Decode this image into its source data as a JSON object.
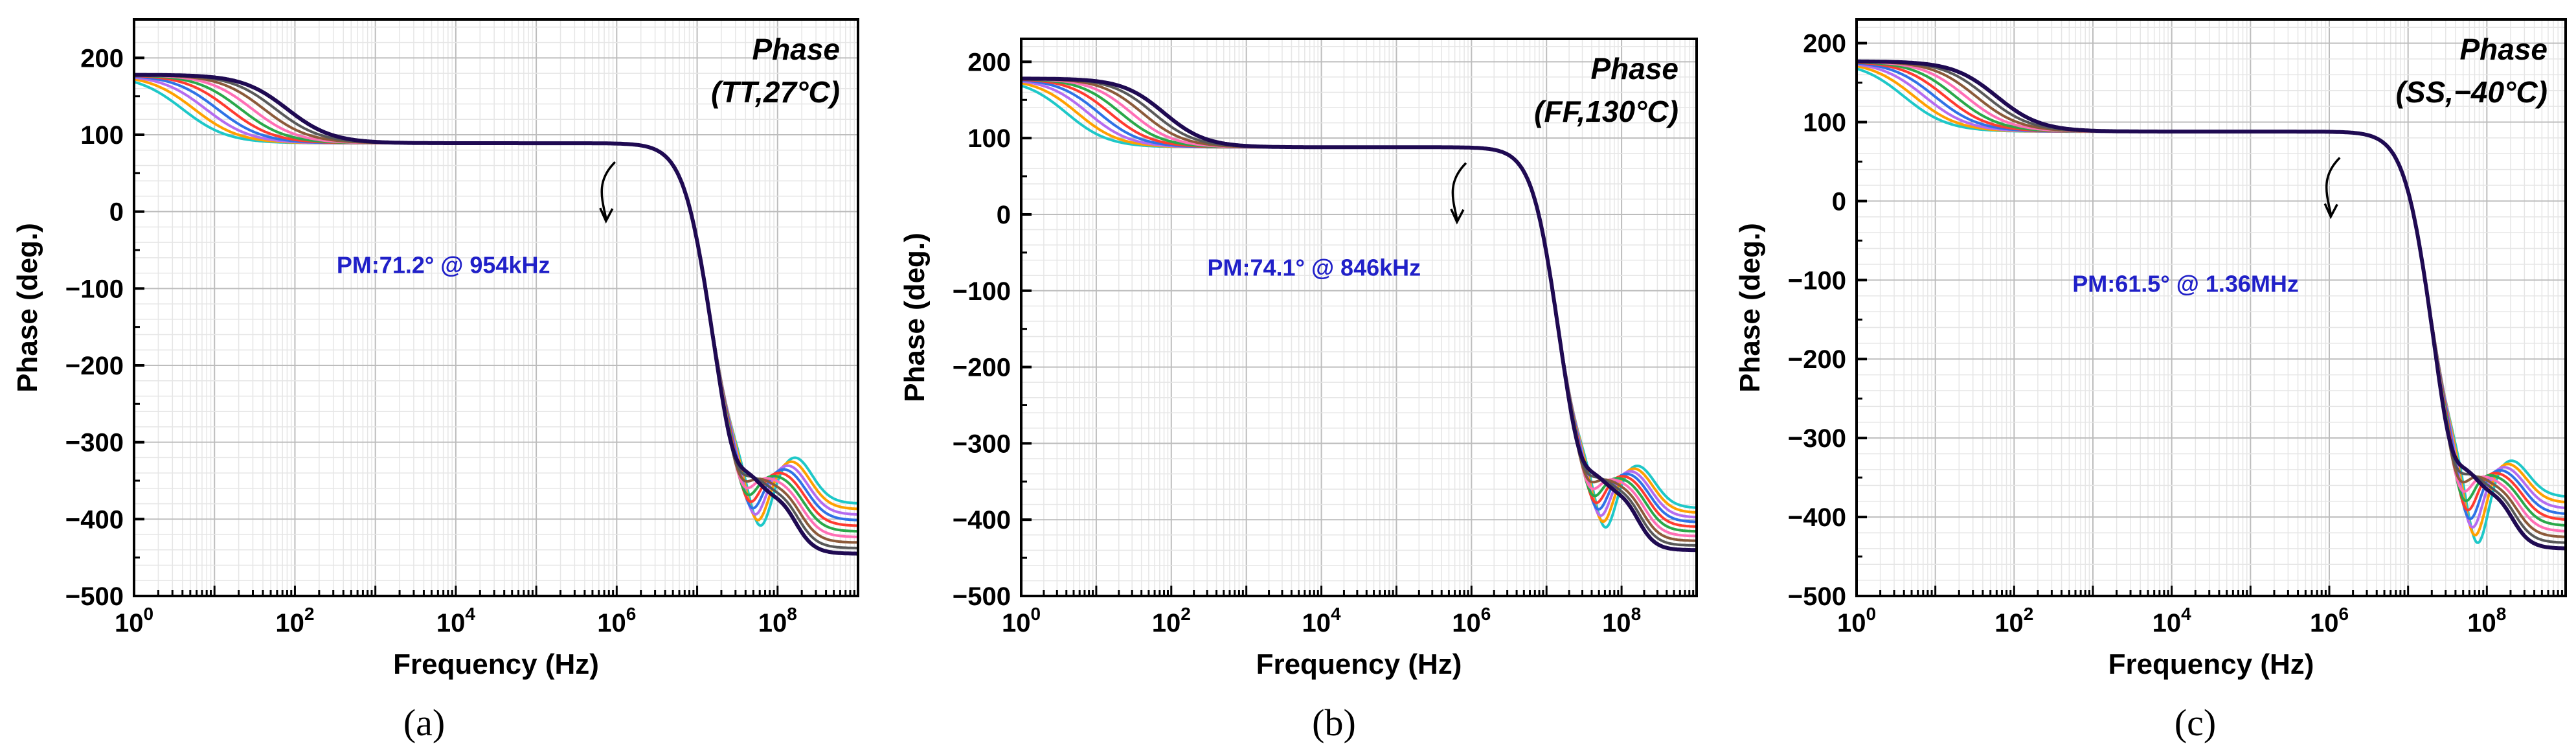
{
  "colors": {
    "grid_major": "#bdbdbd",
    "grid_minor": "#e6e6e6",
    "axis": "#000000",
    "annotation_text": "#2020c8",
    "series_palette": [
      "#1ec8c8",
      "#ffa000",
      "#b46cf0",
      "#2f72e6",
      "#ff3b30",
      "#2aa84a",
      "#ff6fb5",
      "#8c5a3a",
      "#595959",
      "#1f0a52"
    ]
  },
  "chart_data": [
    {
      "type": "line",
      "title": "Phase",
      "subtitle": "(TT,27°C)",
      "caption": "(a)",
      "xlabel": "Frequency (Hz)",
      "ylabel": "Phase (deg.)",
      "xscale": "log",
      "xlim": [
        1,
        1000000000
      ],
      "ylim": [
        -500,
        250
      ],
      "yticks": [
        200,
        100,
        0,
        -100,
        -200,
        -300,
        -400,
        -500
      ],
      "ytick_labels": [
        "200",
        "100",
        "0",
        "−100",
        "−200",
        "−300",
        "−400",
        "−500"
      ],
      "xticks": [
        {
          "value": 1,
          "base": "10",
          "exp": "0"
        },
        {
          "value": 100,
          "base": "10",
          "exp": "2"
        },
        {
          "value": 10000,
          "base": "10",
          "exp": "4"
        },
        {
          "value": 1000000,
          "base": "10",
          "exp": "6"
        },
        {
          "value": 100000000,
          "base": "10",
          "exp": "8"
        }
      ],
      "grid": true,
      "annotation": {
        "text": "PM:71.2° @ 954kHz",
        "x": 954000,
        "y": 71.2,
        "text_x": 7000,
        "text_y": -70
      },
      "legend": "none",
      "series_count": 10,
      "phase": {
        "start": 178,
        "lowpole_range": [
          4,
          80
        ],
        "mid": 89,
        "sharp_pole": 4000000,
        "dip_range": [
          28000000,
          60000000
        ],
        "dip_depth_range": [
          -420,
          -375
        ],
        "bump_range": [
          -315,
          -365
        ],
        "end_range": [
          -445,
          -380
        ],
        "settle_after": -350
      }
    },
    {
      "type": "line",
      "title": "Phase",
      "subtitle": "(FF,130°C)",
      "caption": "(b)",
      "xlabel": "Frequency (Hz)",
      "ylabel": "Phase (deg.)",
      "xscale": "log",
      "xlim": [
        1,
        1000000000
      ],
      "ylim": [
        -500,
        230
      ],
      "yticks": [
        200,
        100,
        0,
        -100,
        -200,
        -300,
        -400,
        -500
      ],
      "ytick_labels": [
        "200",
        "100",
        "0",
        "−100",
        "−200",
        "−300",
        "−400",
        "−500"
      ],
      "xticks": [
        {
          "value": 1,
          "base": "10",
          "exp": "0"
        },
        {
          "value": 100,
          "base": "10",
          "exp": "2"
        },
        {
          "value": 10000,
          "base": "10",
          "exp": "4"
        },
        {
          "value": 1000000,
          "base": "10",
          "exp": "6"
        },
        {
          "value": 100000000,
          "base": "10",
          "exp": "8"
        }
      ],
      "grid": true,
      "annotation": {
        "text": "PM:74.1° @ 846kHz",
        "x": 846000,
        "y": 74.1,
        "text_x": 8000,
        "text_y": -70
      },
      "legend": "none",
      "series_count": 10,
      "phase": {
        "start": 178,
        "lowpole_range": [
          4,
          80
        ],
        "mid": 88,
        "sharp_pole": 3800000,
        "dip_range": [
          28000000,
          60000000
        ],
        "dip_depth_range": [
          -420,
          -370
        ],
        "bump_range": [
          -325,
          -360
        ],
        "end_range": [
          -440,
          -385
        ],
        "settle_after": -350
      }
    },
    {
      "type": "line",
      "title": "Phase",
      "subtitle": "(SS,−40°C)",
      "caption": "(c)",
      "xlabel": "Frequency (Hz)",
      "ylabel": "Phase (deg.)",
      "xscale": "log",
      "xlim": [
        1,
        1000000000
      ],
      "ylim": [
        -500,
        230
      ],
      "yticks": [
        200,
        100,
        0,
        -100,
        -200,
        -300,
        -400,
        -500
      ],
      "ytick_labels": [
        "200",
        "100",
        "0",
        "−100",
        "−200",
        "−300",
        "−400",
        "−500"
      ],
      "xticks": [
        {
          "value": 1,
          "base": "10",
          "exp": "0"
        },
        {
          "value": 100,
          "base": "10",
          "exp": "2"
        },
        {
          "value": 10000,
          "base": "10",
          "exp": "4"
        },
        {
          "value": 1000000,
          "base": "10",
          "exp": "6"
        },
        {
          "value": 100000000,
          "base": "10",
          "exp": "8"
        }
      ],
      "grid": true,
      "annotation": {
        "text": "PM:61.5° @ 1.36MHz",
        "x": 1360000,
        "y": 61.5,
        "text_x": 15000,
        "text_y": -105
      },
      "legend": "none",
      "series_count": 10,
      "phase": {
        "start": 177,
        "lowpole_range": [
          4,
          60
        ],
        "mid": 88,
        "sharp_pole": 5200000,
        "dip_range": [
          35000000,
          75000000
        ],
        "dip_depth_range": [
          -445,
          -380
        ],
        "bump_range": [
          -325,
          -365
        ],
        "end_range": [
          -440,
          -375
        ],
        "settle_after": -350
      }
    }
  ]
}
